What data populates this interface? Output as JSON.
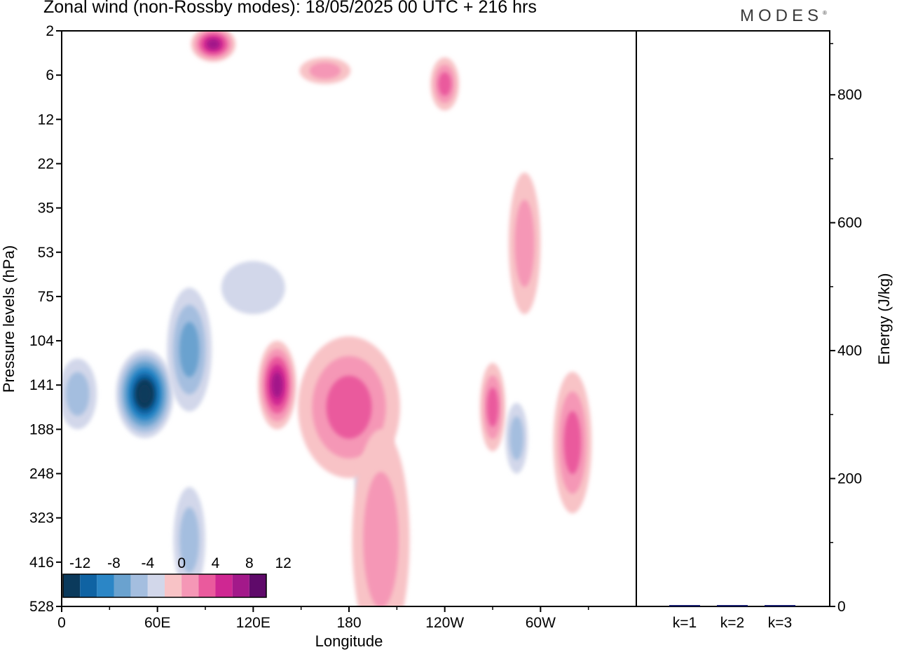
{
  "title": "Zonal wind (non-Rossby modes):  18/05/2025  00 UTC  + 216 hrs",
  "brand": "MODES",
  "colors": {
    "neg": [
      "#0b3a5c",
      "#0f63a3",
      "#2b86c6",
      "#6aa2cf",
      "#a4bedf",
      "#d2d7ea"
    ],
    "zero": "#ffffff",
    "pos": [
      "#f8c3c6",
      "#f597b6",
      "#ea5a9d",
      "#cf2792",
      "#a3198a",
      "#5f0a6a"
    ]
  },
  "chart_data": [
    {
      "type": "heatmap",
      "xlabel": "Longitude",
      "ylabel": "Pressure levels (hPa)",
      "x_ticks": [
        "0",
        "60E",
        "120E",
        "180",
        "120W",
        "60W"
      ],
      "x_range_deg": [
        0,
        360
      ],
      "y_ticks": [
        "2",
        "6",
        "12",
        "22",
        "35",
        "53",
        "75",
        "104",
        "141",
        "188",
        "248",
        "323",
        "416",
        "528"
      ],
      "colorbar": {
        "labels": [
          "-12",
          "-8",
          "-4",
          "0",
          "4",
          "8",
          "12"
        ],
        "levels": [
          -12,
          -10,
          -8,
          -6,
          -4,
          -2,
          0,
          2,
          4,
          6,
          8,
          10,
          12
        ]
      },
      "features": [
        {
          "lon": 52,
          "level_index": 8.2,
          "value": -14,
          "lon_width": 18,
          "level_height": 1.0
        },
        {
          "lon": 80,
          "level_index": 7.2,
          "value": -6,
          "lon_width": 14,
          "level_height": 1.4
        },
        {
          "lon": 10,
          "level_index": 8.2,
          "value": -4,
          "lon_width": 12,
          "level_height": 0.8
        },
        {
          "lon": 80,
          "level_index": 11.5,
          "value": -3,
          "lon_width": 10,
          "level_height": 1.2
        },
        {
          "lon": 120,
          "level_index": 5.8,
          "value": -2,
          "lon_width": 20,
          "level_height": 0.6
        },
        {
          "lon": 190,
          "level_index": 9.7,
          "value": -2,
          "lon_width": 7,
          "level_height": 1.2
        },
        {
          "lon": 285,
          "level_index": 9.2,
          "value": -4,
          "lon_width": 7,
          "level_height": 0.8
        },
        {
          "lon": 95,
          "level_index": 0.3,
          "value": 10,
          "lon_width": 14,
          "level_height": 0.4
        },
        {
          "lon": 135,
          "level_index": 8.0,
          "value": 10,
          "lon_width": 12,
          "level_height": 1.0
        },
        {
          "lon": 180,
          "level_index": 8.5,
          "value": 5,
          "lon_width": 32,
          "level_height": 1.6
        },
        {
          "lon": 200,
          "level_index": 11.5,
          "value": 3,
          "lon_width": 18,
          "level_height": 2.5
        },
        {
          "lon": 270,
          "level_index": 8.5,
          "value": 5,
          "lon_width": 8,
          "level_height": 1.0
        },
        {
          "lon": 320,
          "level_index": 9.3,
          "value": 6,
          "lon_width": 12,
          "level_height": 1.6
        },
        {
          "lon": 240,
          "level_index": 1.2,
          "value": 6,
          "lon_width": 9,
          "level_height": 0.6
        },
        {
          "lon": 290,
          "level_index": 4.8,
          "value": 3,
          "lon_width": 10,
          "level_height": 1.6
        },
        {
          "lon": 165,
          "level_index": 0.9,
          "value": 4,
          "lon_width": 16,
          "level_height": 0.3
        }
      ]
    },
    {
      "type": "bar",
      "categories": [
        "k=1",
        "k=2",
        "k=3"
      ],
      "values": [
        2,
        1,
        0.5
      ],
      "ylabel": "Energy (J/kg)",
      "y_ticks": [
        "0",
        "200",
        "400",
        "600",
        "800"
      ],
      "ylim": [
        0,
        900
      ]
    }
  ]
}
